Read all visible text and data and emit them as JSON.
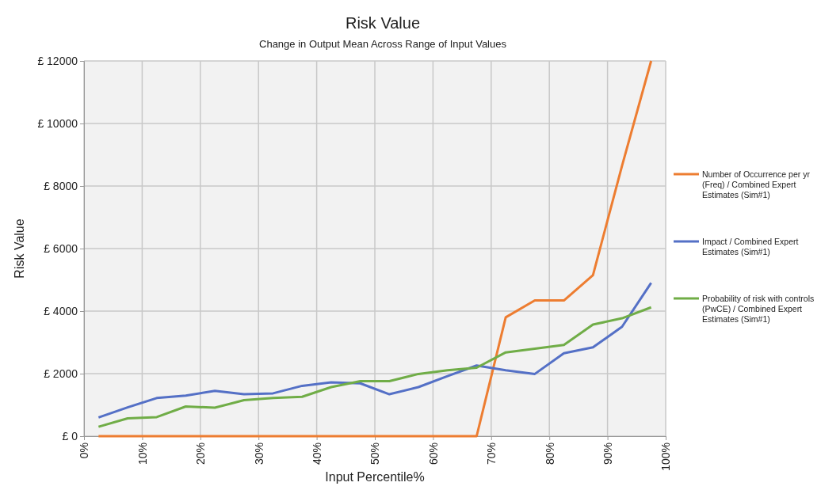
{
  "chart_data": {
    "type": "line",
    "title": "Risk Value",
    "subtitle": "Change in Output Mean Across Range of Input Values",
    "xlabel": "Input Percentile%",
    "ylabel": "Risk Value",
    "x": [
      2.5,
      7.5,
      12.5,
      17.5,
      22.5,
      27.5,
      32.5,
      37.5,
      42.5,
      47.5,
      52.5,
      57.5,
      62.5,
      67.5,
      72.5,
      77.5,
      82.5,
      87.5,
      92.5,
      97.5
    ],
    "series": [
      {
        "name": "Number of Occurrence per yr (Freq) / Combined Expert Estimates (Sim#1)",
        "color": "#ed7d31",
        "values": [
          0,
          0,
          0,
          0,
          0,
          0,
          0,
          0,
          0,
          0,
          0,
          0,
          0,
          0,
          3800,
          4340,
          4340,
          5150,
          8650,
          12000
        ]
      },
      {
        "name": "Impact / Combined Expert Estimates (Sim#1)",
        "color": "#5470c6",
        "values": [
          600,
          920,
          1220,
          1300,
          1450,
          1340,
          1370,
          1610,
          1720,
          1690,
          1340,
          1570,
          1920,
          2260,
          2110,
          1990,
          2650,
          2840,
          3500,
          4900
        ]
      },
      {
        "name": "Probability of risk with controls (PwCE) / Combined Expert Estimates (Sim#1)",
        "color": "#70ad47",
        "values": [
          300,
          570,
          610,
          950,
          910,
          1150,
          1220,
          1260,
          1570,
          1760,
          1760,
          1990,
          2110,
          2190,
          2680,
          2800,
          2920,
          3570,
          3770,
          4120
        ]
      }
    ],
    "xlim": [
      0,
      100
    ],
    "xticks": [
      {
        "value": 0,
        "label": "0%"
      },
      {
        "value": 10,
        "label": "10%"
      },
      {
        "value": 20,
        "label": "20%"
      },
      {
        "value": 30,
        "label": "30%"
      },
      {
        "value": 40,
        "label": "40%"
      },
      {
        "value": 50,
        "label": "50%"
      },
      {
        "value": 60,
        "label": "60%"
      },
      {
        "value": 70,
        "label": "70%"
      },
      {
        "value": 80,
        "label": "80%"
      },
      {
        "value": 90,
        "label": "90%"
      },
      {
        "value": 100,
        "label": "100%"
      }
    ],
    "ylim": [
      0,
      12000
    ],
    "yticks": [
      {
        "value": 0,
        "label": "£ 0"
      },
      {
        "value": 2000,
        "label": "£ 2000"
      },
      {
        "value": 4000,
        "label": "£ 4000"
      },
      {
        "value": 6000,
        "label": "£ 6000"
      },
      {
        "value": 8000,
        "label": "£ 8000"
      },
      {
        "value": 10000,
        "label": "£ 10000"
      },
      {
        "value": 12000,
        "label": "£ 12000"
      }
    ],
    "grid": true,
    "legend": "right",
    "marker": "none",
    "line_style": "solid"
  }
}
